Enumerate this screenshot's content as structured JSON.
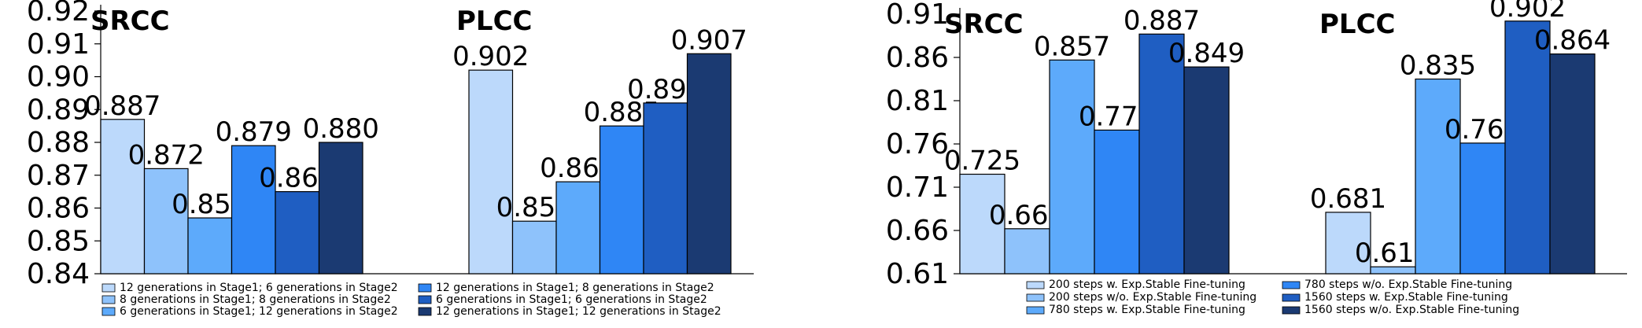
{
  "chart_data": [
    {
      "type": "bar",
      "categories": [
        "SRCC",
        "PLCC"
      ],
      "ylim": [
        0.84,
        0.92
      ],
      "yticks": [
        "0.84",
        "0.85",
        "0.86",
        "0.87",
        "0.88",
        "0.89",
        "0.90",
        "0.91",
        "0.92"
      ],
      "series": [
        {
          "name": "12 generations in Stage1; 6 generations in Stage2",
          "color": "#bcd9fb",
          "values": [
            0.887,
            0.902
          ],
          "labels": [
            "0.887",
            "0.902"
          ]
        },
        {
          "name": "8 generations in Stage1; 8 generations in Stage2",
          "color": "#8ec2fb",
          "values": [
            0.872,
            0.856
          ],
          "labels": [
            "0.872",
            "0.856"
          ]
        },
        {
          "name": "6 generations in Stage1; 12 generations in Stage2",
          "color": "#5daafb",
          "values": [
            0.857,
            0.868
          ],
          "labels": [
            "0.857",
            "0.868"
          ]
        },
        {
          "name": "12 generations in Stage1; 8 generations in Stage2",
          "color": "#2f86f5",
          "values": [
            0.879,
            0.885
          ],
          "labels": [
            "0.879",
            "0.885"
          ]
        },
        {
          "name": "6 generations in Stage1; 6 generations in Stage2",
          "color": "#1f5ec2",
          "values": [
            0.865,
            0.892
          ],
          "labels": [
            "0.865",
            "0.892"
          ]
        },
        {
          "name": "12 generations in Stage1; 12 generations in Stage2",
          "color": "#1b3a72",
          "values": [
            0.88,
            0.907
          ],
          "labels": [
            "0.880",
            "0.907"
          ]
        }
      ],
      "legend_placement": "bottom"
    },
    {
      "type": "bar",
      "categories": [
        "SRCC",
        "PLCC"
      ],
      "ylim": [
        0.61,
        0.91
      ],
      "yticks": [
        "0.61",
        "0.66",
        "0.71",
        "0.76",
        "0.81",
        "0.86",
        "0.91"
      ],
      "series": [
        {
          "name": "200 steps w. Exp.Stable Fine-tuning",
          "color": "#bcd9fb",
          "values": [
            0.725,
            0.681
          ],
          "labels": [
            "0.725",
            "0.681"
          ]
        },
        {
          "name": "200 steps w/o. Exp.Stable Fine-tuning",
          "color": "#8ec2fb",
          "values": [
            0.662,
            0.618
          ],
          "labels": [
            "0.662",
            "0.618"
          ]
        },
        {
          "name": "780 steps w. Exp.Stable Fine-tuning",
          "color": "#5daafb",
          "values": [
            0.857,
            0.835
          ],
          "labels": [
            "0.857",
            "0.835"
          ]
        },
        {
          "name": "780 steps w/o. Exp.Stable Fine-tuning",
          "color": "#2f86f5",
          "values": [
            0.776,
            0.761
          ],
          "labels": [
            "0.776",
            "0.761"
          ]
        },
        {
          "name": "1560 steps w. Exp.Stable Fine-tuning",
          "color": "#1f5ec2",
          "values": [
            0.887,
            0.902
          ],
          "labels": [
            "0.887",
            "0.902"
          ]
        },
        {
          "name": "1560 steps w/o. Exp.Stable Fine-tuning",
          "color": "#1b3a72",
          "values": [
            0.849,
            0.864
          ],
          "labels": [
            "0.849",
            "0.864"
          ]
        }
      ],
      "legend_placement": "bottom"
    }
  ]
}
